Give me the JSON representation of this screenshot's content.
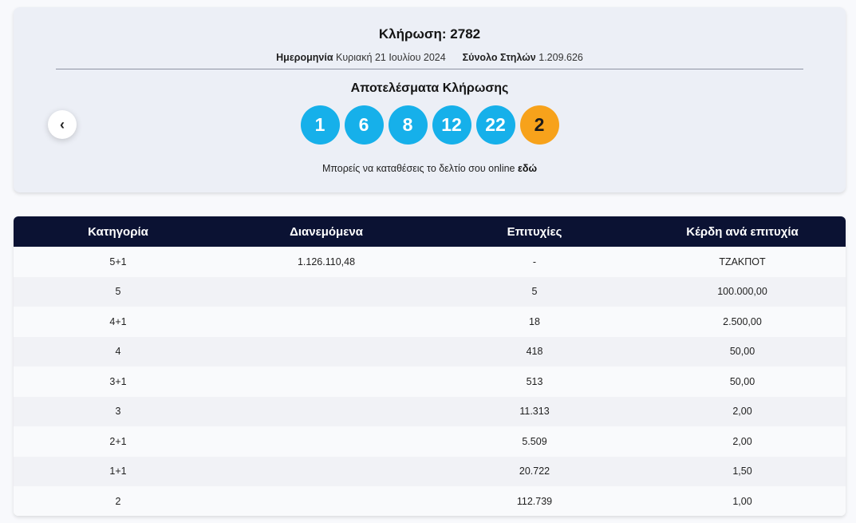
{
  "draw": {
    "title": "Κλήρωση: 2782",
    "date_label": "Ημερομηνία",
    "date_value": "Κυριακή 21 Ιουλίου 2024",
    "columns_label": "Σύνολο Στηλών",
    "columns_value": "1.209.626",
    "results_title": "Αποτελέσματα Κλήρωσης",
    "prev_icon": "chevron-left-icon",
    "numbers": [
      "1",
      "6",
      "8",
      "12",
      "22"
    ],
    "bonus": "2",
    "colors": {
      "number_ball": "#16b0ea",
      "bonus_ball": "#f7a21b",
      "header_bg": "#0b1233"
    },
    "online_text": "Μπορείς να καταθέσεις το δελτίο σου online",
    "online_link": "εδώ"
  },
  "table": {
    "headers": [
      "Κατηγορία",
      "Διανεμόμενα",
      "Επιτυχίες",
      "Κέρδη ανά επιτυχία"
    ],
    "rows": [
      [
        "5+1",
        "1.126.110,48",
        "-",
        "ΤΖΑΚΠΟΤ"
      ],
      [
        "5",
        "",
        "5",
        "100.000,00"
      ],
      [
        "4+1",
        "",
        "18",
        "2.500,00"
      ],
      [
        "4",
        "",
        "418",
        "50,00"
      ],
      [
        "3+1",
        "",
        "513",
        "50,00"
      ],
      [
        "3",
        "",
        "11.313",
        "2,00"
      ],
      [
        "2+1",
        "",
        "5.509",
        "2,00"
      ],
      [
        "1+1",
        "",
        "20.722",
        "1,50"
      ],
      [
        "2",
        "",
        "112.739",
        "1,00"
      ]
    ]
  }
}
